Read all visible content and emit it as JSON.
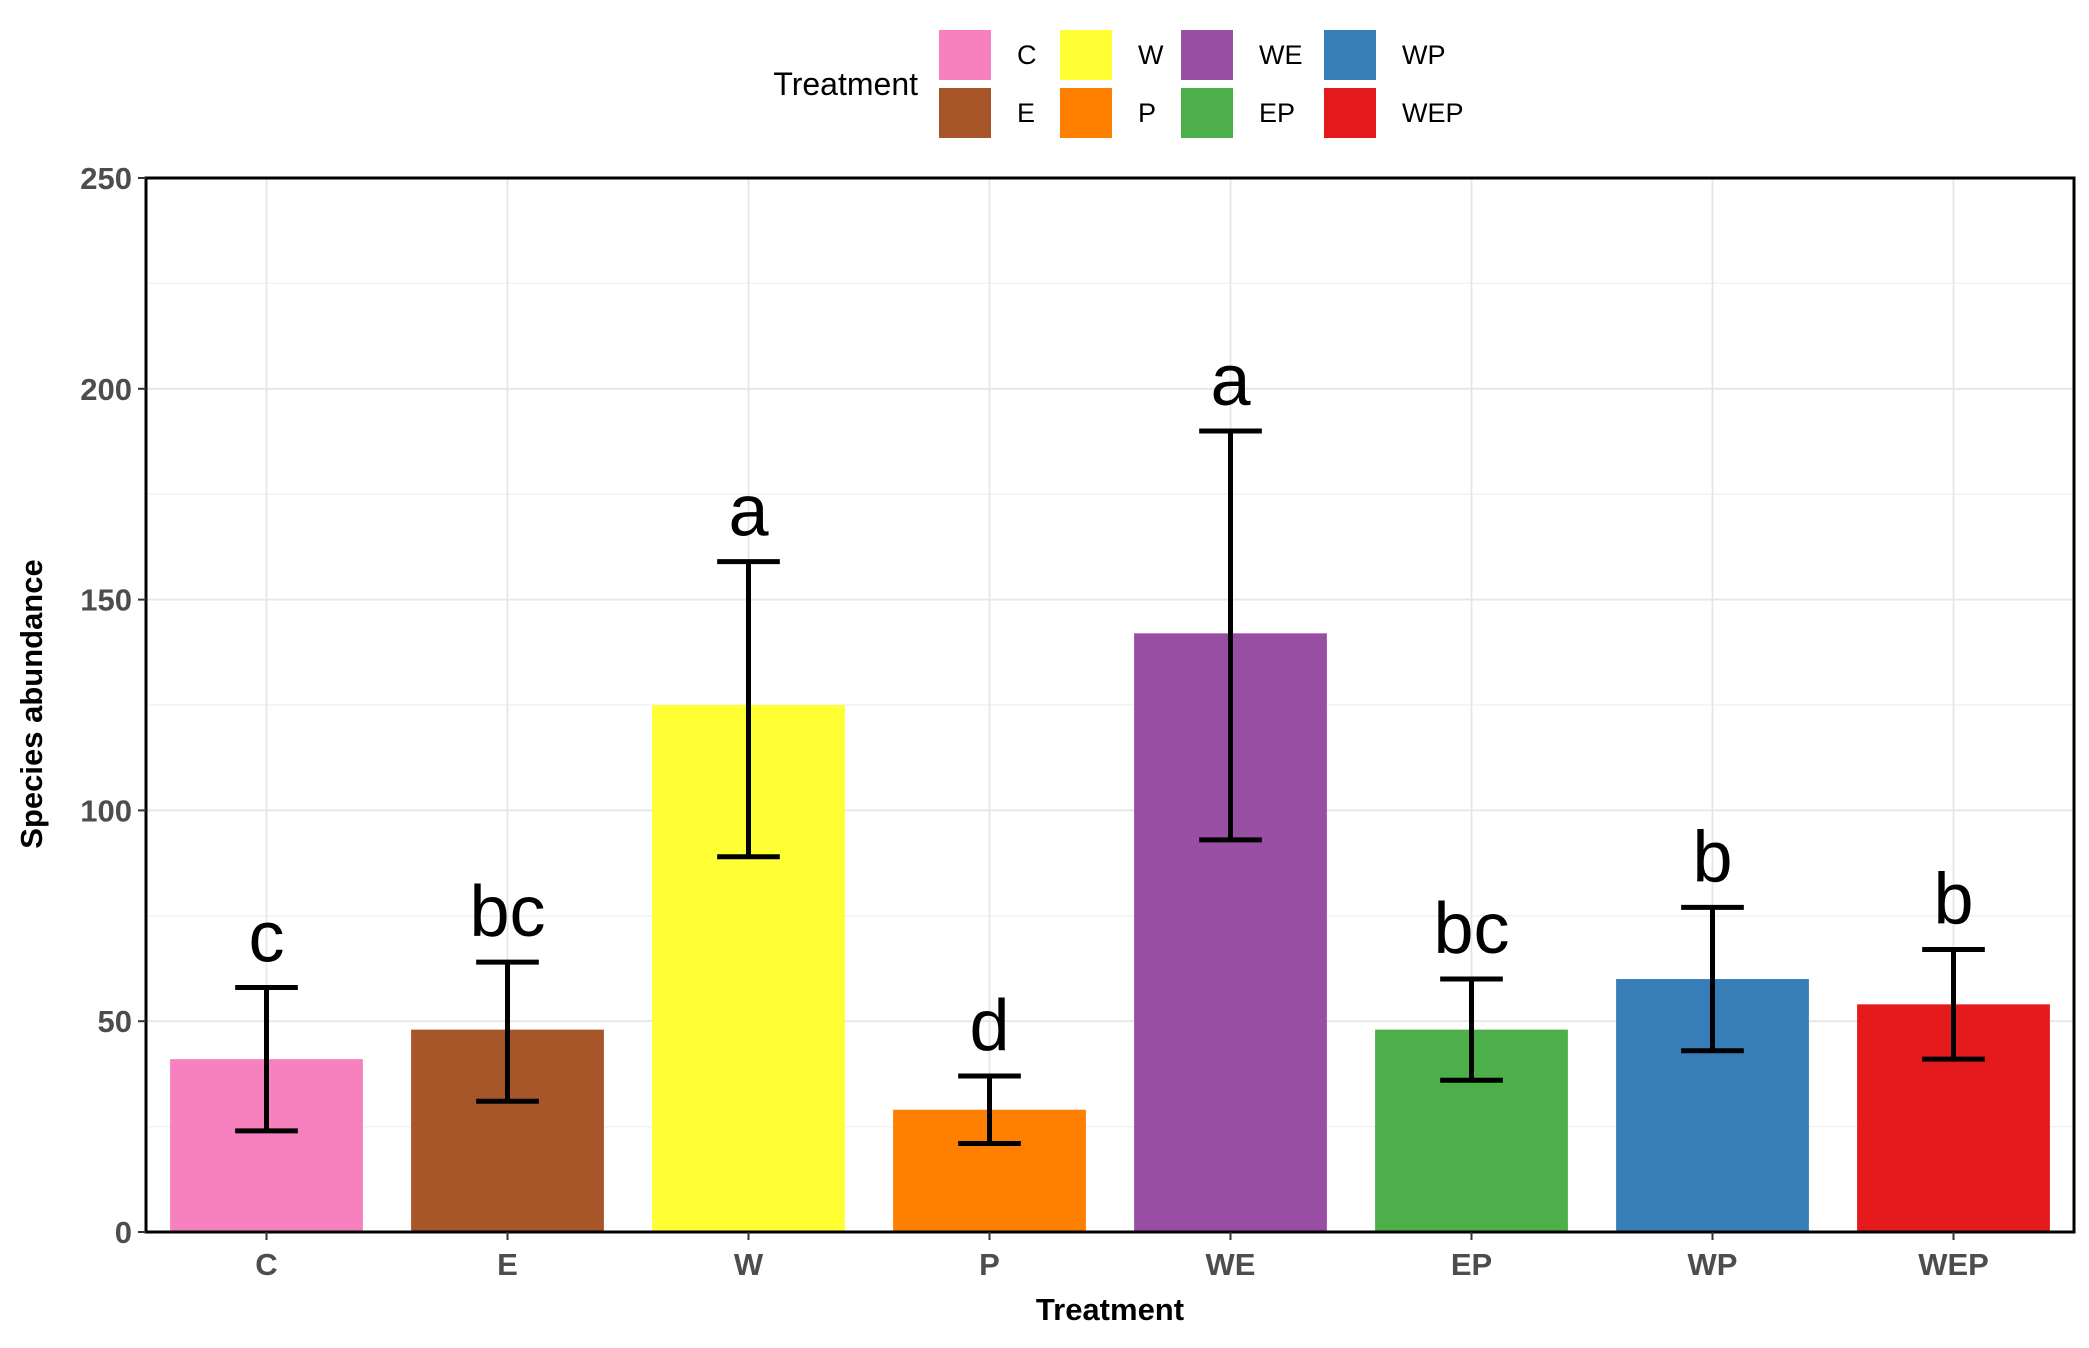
{
  "chart_data": {
    "type": "bar",
    "xlabel": "Treatment",
    "ylabel": "Species abundance",
    "ylim": [
      0,
      250
    ],
    "yticks": [
      0,
      50,
      100,
      150,
      200,
      250
    ],
    "grid": true,
    "legend": {
      "title": "Treatment",
      "placement": "top",
      "entries": [
        "C",
        "W",
        "WE",
        "WP",
        "E",
        "P",
        "EP",
        "WEP"
      ]
    },
    "categories": [
      "C",
      "E",
      "W",
      "P",
      "WE",
      "EP",
      "WP",
      "WEP"
    ],
    "values": [
      41,
      48,
      125,
      29,
      142,
      48,
      60,
      54
    ],
    "error_low": [
      24,
      31,
      89,
      21,
      93,
      36,
      43,
      41
    ],
    "error_high": [
      58,
      64,
      159,
      37,
      190,
      60,
      77,
      67
    ],
    "significance": [
      "c",
      "bc",
      "a",
      "d",
      "a",
      "bc",
      "b",
      "b"
    ],
    "colors": {
      "C": "#f781bf",
      "E": "#a65628",
      "W": "#ffff33",
      "P": "#ff7f00",
      "WE": "#984ea3",
      "EP": "#4daf4a",
      "WP": "#377eb8",
      "WEP": "#e41a1c"
    }
  }
}
